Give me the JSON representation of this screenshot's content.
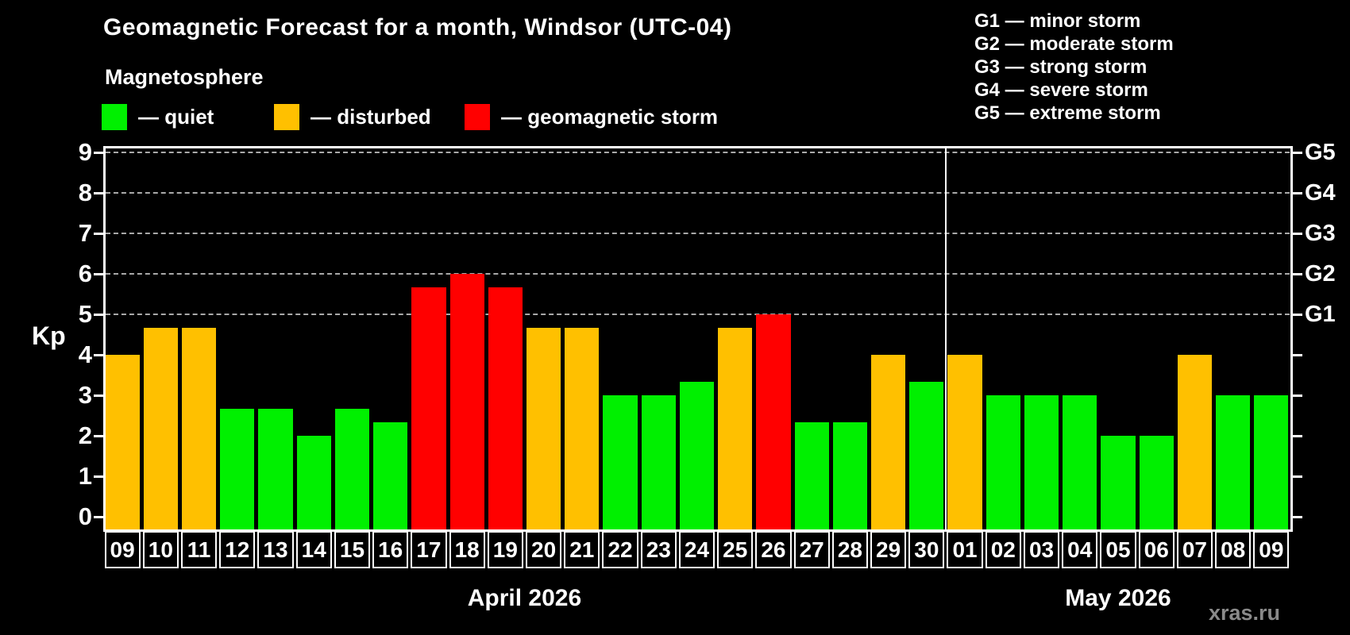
{
  "subtitle": "Magnetosphere",
  "magnetosphere_legend": [
    {
      "label": "— quiet",
      "color": "#00f000",
      "status": "quiet"
    },
    {
      "label": "— disturbed",
      "color": "#ffc000",
      "status": "disturbed"
    },
    {
      "label": "— geomagnetic storm",
      "color": "#ff0000",
      "status": "storm"
    }
  ],
  "storm_scale_legend": [
    "G1 — minor storm",
    "G2 — moderate storm",
    "G3 — strong storm",
    "G4 — severe storm",
    "G5 — extreme storm"
  ],
  "axis": {
    "yticks": [
      0,
      1,
      2,
      3,
      4,
      5,
      6,
      7,
      8,
      9
    ],
    "g_ticks": [
      {
        "label": "G1",
        "kp": 5
      },
      {
        "label": "G2",
        "kp": 6
      },
      {
        "label": "G3",
        "kp": 7
      },
      {
        "label": "G4",
        "kp": 8
      },
      {
        "label": "G5",
        "kp": 9
      }
    ]
  },
  "status_colors": {
    "quiet": "#00f000",
    "disturbed": "#ffc000",
    "storm": "#ff0000"
  },
  "watermark": "xras.ru",
  "chart_data": {
    "type": "bar",
    "title": "Geomagnetic Forecast for a month, Windsor (UTC-04)",
    "ylabel": "Kp",
    "ylim": [
      0,
      9
    ],
    "grid": "dashed horizontal lines at Kp 5-9 (G1-G5)",
    "legend_position": "top-left",
    "months": [
      {
        "label": "April 2026",
        "days": [
          "09",
          "10",
          "11",
          "12",
          "13",
          "14",
          "15",
          "16",
          "17",
          "18",
          "19",
          "20",
          "21",
          "22",
          "23",
          "24",
          "25",
          "26",
          "27",
          "28",
          "29",
          "30"
        ],
        "values": [
          4,
          4.67,
          4.67,
          2.67,
          2.67,
          2,
          2.67,
          2.33,
          5.67,
          6,
          5.67,
          4.67,
          4.67,
          3,
          3,
          3.33,
          4.67,
          5,
          2.33,
          2.33,
          4,
          3.33
        ],
        "status": [
          "disturbed",
          "disturbed",
          "disturbed",
          "quiet",
          "quiet",
          "quiet",
          "quiet",
          "quiet",
          "storm",
          "storm",
          "storm",
          "disturbed",
          "disturbed",
          "quiet",
          "quiet",
          "quiet",
          "disturbed",
          "storm",
          "quiet",
          "quiet",
          "disturbed",
          "quiet"
        ]
      },
      {
        "label": "May 2026",
        "days": [
          "01",
          "02",
          "03",
          "04",
          "05",
          "06",
          "07",
          "08",
          "09"
        ],
        "values": [
          4,
          3,
          3,
          3,
          2,
          2,
          4,
          3,
          3
        ],
        "status": [
          "disturbed",
          "quiet",
          "quiet",
          "quiet",
          "quiet",
          "quiet",
          "disturbed",
          "quiet",
          "quiet"
        ]
      }
    ]
  }
}
